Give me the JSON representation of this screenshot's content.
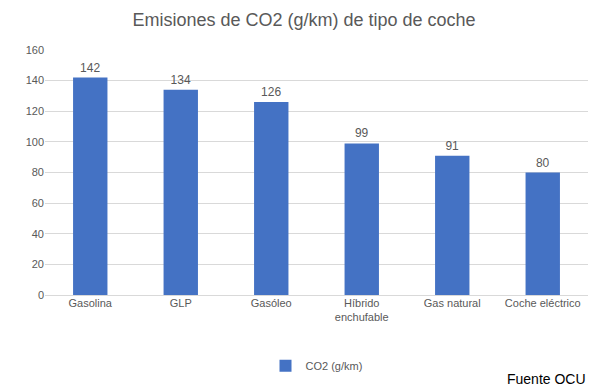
{
  "chart_data": {
    "type": "bar",
    "title": "Emisiones de CO2 (g/km) de tipo de coche",
    "categories": [
      "Gasolina",
      "GLP",
      "Gasóleo",
      "Híbrido enchufable",
      "Gas natural",
      "Coche eléctrico"
    ],
    "series": [
      {
        "name": "CO2 (g/km)",
        "color": "#4472c4",
        "values": [
          142,
          134,
          126,
          99,
          91,
          80
        ]
      }
    ],
    "ylim": [
      0,
      160
    ],
    "yticks": [
      0,
      20,
      40,
      60,
      80,
      100,
      120,
      140,
      160
    ],
    "grid": true,
    "data_labels": true,
    "legend": "bottom",
    "annotations": [
      "Fuente OCU"
    ]
  }
}
